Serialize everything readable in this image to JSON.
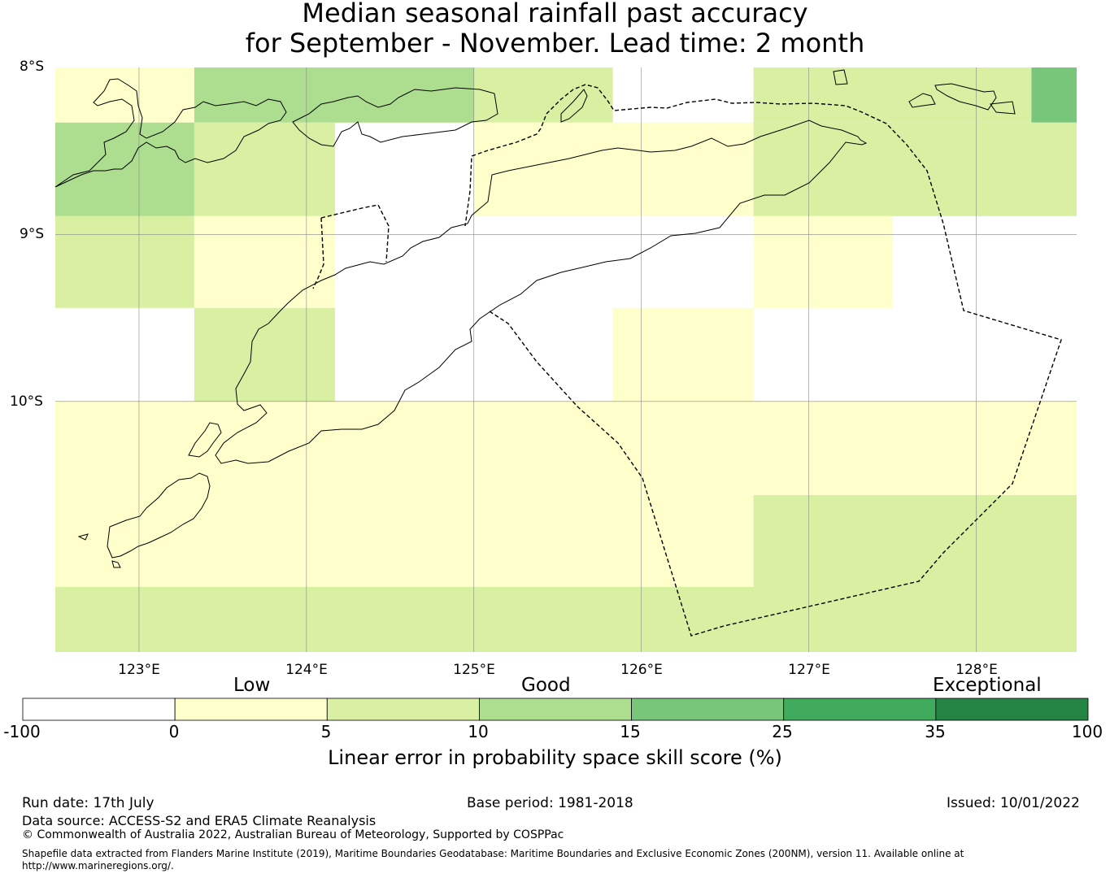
{
  "title_line1": "Median seasonal rainfall past accuracy",
  "title_line2": "for September - November. Lead time: 2 month",
  "map": {
    "lat_labels": [
      "8°S",
      "9°S",
      "10°S"
    ],
    "lon_labels": [
      "123°E",
      "124°E",
      "125°E",
      "126°E",
      "127°E",
      "128°E"
    ],
    "lon_range": [
      122.5,
      128.6
    ],
    "lat_range": [
      -11.5,
      -8.0
    ],
    "skill_cells_percent_class": [
      {
        "lon": [
          122.5,
          123.33
        ],
        "lat": [
          -8.33,
          -8.0
        ],
        "class": "0-5"
      },
      {
        "lon": [
          123.33,
          125.0
        ],
        "lat": [
          -8.33,
          -8.0
        ],
        "class": "10-15"
      },
      {
        "lon": [
          125.0,
          125.83
        ],
        "lat": [
          -8.33,
          -8.0
        ],
        "class": "5-10"
      },
      {
        "lon": [
          126.67,
          128.33
        ],
        "lat": [
          -8.33,
          -8.0
        ],
        "class": "5-10"
      },
      {
        "lon": [
          128.33,
          128.6
        ],
        "lat": [
          -8.33,
          -8.0
        ],
        "class": "15-25"
      },
      {
        "lon": [
          122.5,
          123.33
        ],
        "lat": [
          -8.89,
          -8.33
        ],
        "class": "10-15"
      },
      {
        "lon": [
          123.33,
          124.17
        ],
        "lat": [
          -8.89,
          -8.33
        ],
        "class": "5-10"
      },
      {
        "lon": [
          125.0,
          126.67
        ],
        "lat": [
          -8.89,
          -8.33
        ],
        "class": "0-5"
      },
      {
        "lon": [
          126.67,
          128.6
        ],
        "lat": [
          -8.89,
          -8.33
        ],
        "class": "5-10"
      },
      {
        "lon": [
          122.5,
          123.33
        ],
        "lat": [
          -9.44,
          -8.89
        ],
        "class": "5-10"
      },
      {
        "lon": [
          123.33,
          124.17
        ],
        "lat": [
          -9.44,
          -8.89
        ],
        "class": "0-5"
      },
      {
        "lon": [
          126.67,
          127.5
        ],
        "lat": [
          -9.44,
          -8.89
        ],
        "class": "0-5"
      },
      {
        "lon": [
          123.33,
          124.17
        ],
        "lat": [
          -10.0,
          -9.44
        ],
        "class": "5-10"
      },
      {
        "lon": [
          125.83,
          126.67
        ],
        "lat": [
          -10.0,
          -9.44
        ],
        "class": "0-5"
      },
      {
        "lon": [
          122.5,
          128.6
        ],
        "lat": [
          -10.56,
          -10.0
        ],
        "class": "0-5"
      },
      {
        "lon": [
          122.5,
          126.67
        ],
        "lat": [
          -11.11,
          -10.56
        ],
        "class": "0-5"
      },
      {
        "lon": [
          126.67,
          128.6
        ],
        "lat": [
          -11.11,
          -10.56
        ],
        "class": "5-10"
      },
      {
        "lon": [
          122.5,
          128.6
        ],
        "lat": [
          -11.5,
          -11.11
        ],
        "class": "5-10"
      }
    ]
  },
  "colorbar": {
    "categories": [
      "Low",
      "Good",
      "Exceptional"
    ],
    "ticks": [
      "-100",
      "0",
      "5",
      "10",
      "15",
      "25",
      "35",
      "100"
    ],
    "colors": [
      "#ffffff",
      "#ffffcc",
      "#d9f0a3",
      "#addd8e",
      "#78c679",
      "#41ab5d",
      "#238443"
    ],
    "label": "Linear error in probability space skill score (%)"
  },
  "footer": {
    "run_date": "Run date: 17th July",
    "base_period": "Base period: 1981-2018",
    "issued": "Issued: 10/01/2022",
    "data_source": "Data source: ACCESS-S2 and ERA5 Climate Reanalysis",
    "copyright": "© Commonwealth of Australia 2022, Australian Bureau of Meteorology, Supported by COSPPac",
    "shapefile": "Shapefile data extracted from Flanders Marine Institute (2019), Maritime Boundaries Geodatabase: Maritime Boundaries and Exclusive Economic Zones (200NM), version 11. Available online at http://www.marineregions.org/."
  }
}
